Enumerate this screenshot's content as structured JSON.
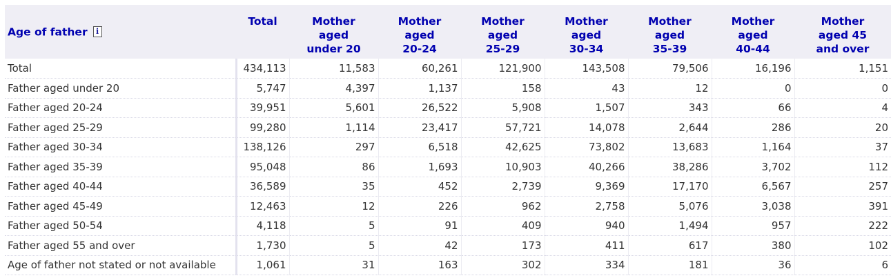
{
  "table": {
    "row_header_label": "Age of father",
    "info_icon": "i",
    "columns": [
      [
        "Total"
      ],
      [
        "Mother",
        "aged",
        "under 20"
      ],
      [
        "Mother",
        "aged",
        "20-24"
      ],
      [
        "Mother",
        "aged",
        "25-29"
      ],
      [
        "Mother",
        "aged",
        "30-34"
      ],
      [
        "Mother",
        "aged",
        "35-39"
      ],
      [
        "Mother",
        "aged",
        "40-44"
      ],
      [
        "Mother",
        "aged 45",
        "and over"
      ]
    ],
    "rows": [
      {
        "label": "Total",
        "values": [
          "434,113",
          "11,583",
          "60,261",
          "121,900",
          "143,508",
          "79,506",
          "16,196",
          "1,151"
        ]
      },
      {
        "label": "Father aged under 20",
        "values": [
          "5,747",
          "4,397",
          "1,137",
          "158",
          "43",
          "12",
          "0",
          "0"
        ]
      },
      {
        "label": "Father aged 20-24",
        "values": [
          "39,951",
          "5,601",
          "26,522",
          "5,908",
          "1,507",
          "343",
          "66",
          "4"
        ]
      },
      {
        "label": "Father aged 25-29",
        "values": [
          "99,280",
          "1,114",
          "23,417",
          "57,721",
          "14,078",
          "2,644",
          "286",
          "20"
        ]
      },
      {
        "label": "Father aged 30-34",
        "values": [
          "138,126",
          "297",
          "6,518",
          "42,625",
          "73,802",
          "13,683",
          "1,164",
          "37"
        ]
      },
      {
        "label": "Father aged 35-39",
        "values": [
          "95,048",
          "86",
          "1,693",
          "10,903",
          "40,266",
          "38,286",
          "3,702",
          "112"
        ]
      },
      {
        "label": "Father aged 40-44",
        "values": [
          "36,589",
          "35",
          "452",
          "2,739",
          "9,369",
          "17,170",
          "6,567",
          "257"
        ]
      },
      {
        "label": "Father aged 45-49",
        "values": [
          "12,463",
          "12",
          "226",
          "962",
          "2,758",
          "5,076",
          "3,038",
          "391"
        ]
      },
      {
        "label": "Father aged 50-54",
        "values": [
          "4,118",
          "5",
          "91",
          "409",
          "940",
          "1,494",
          "957",
          "222"
        ]
      },
      {
        "label": "Father aged 55 and over",
        "values": [
          "1,730",
          "5",
          "42",
          "173",
          "411",
          "617",
          "380",
          "102"
        ]
      },
      {
        "label": "Age of father not stated or not available",
        "values": [
          "1,061",
          "31",
          "163",
          "302",
          "334",
          "181",
          "36",
          "6"
        ]
      }
    ]
  }
}
